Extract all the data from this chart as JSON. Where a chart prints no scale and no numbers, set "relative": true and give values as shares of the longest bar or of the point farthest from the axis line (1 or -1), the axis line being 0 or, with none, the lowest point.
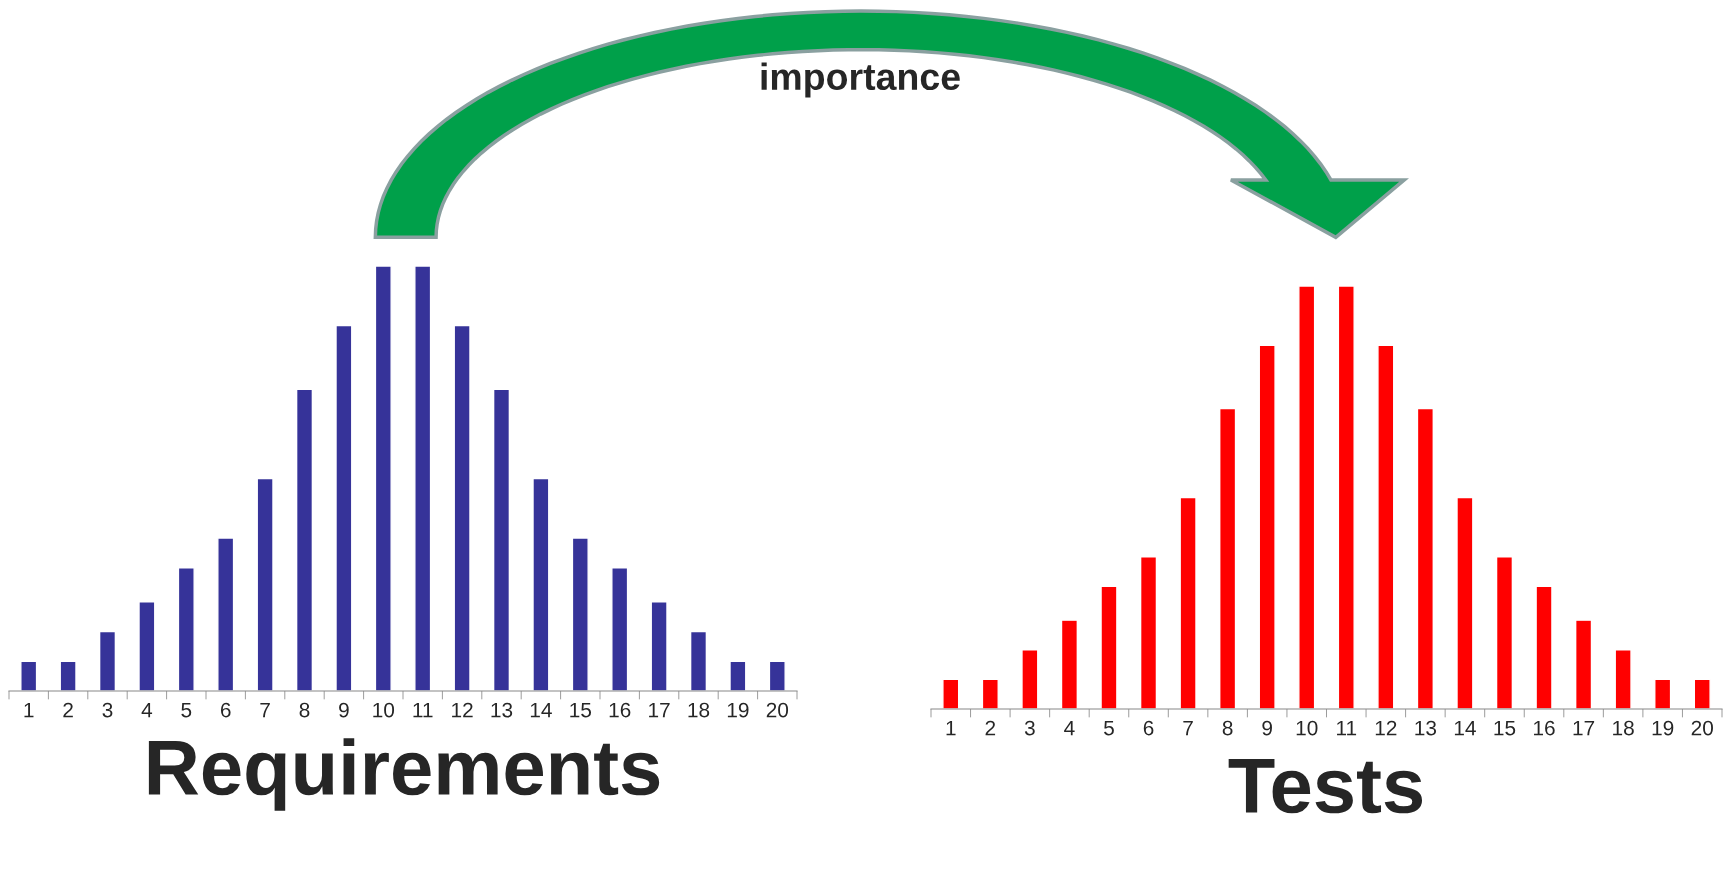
{
  "chart_data": [
    {
      "type": "bar",
      "relative": true,
      "xlabel": "Requirements",
      "annotations": [
        "importance"
      ],
      "categories": [
        "1",
        "2",
        "3",
        "4",
        "5",
        "6",
        "7",
        "8",
        "9",
        "10",
        "11",
        "12",
        "13",
        "14",
        "15",
        "16",
        "17",
        "18",
        "19",
        "20"
      ],
      "color": "#363399",
      "values": [
        0.07,
        0.07,
        0.14,
        0.21,
        0.29,
        0.36,
        0.5,
        0.71,
        0.86,
        1,
        1,
        0.86,
        0.71,
        0.5,
        0.36,
        0.29,
        0.21,
        0.14,
        0.07,
        0.07
      ]
    },
    {
      "type": "bar",
      "relative": true,
      "xlabel": "Tests",
      "categories": [
        "1",
        "2",
        "3",
        "4",
        "5",
        "6",
        "7",
        "8",
        "9",
        "10",
        "11",
        "12",
        "13",
        "14",
        "15",
        "16",
        "17",
        "18",
        "19",
        "20"
      ],
      "color": "#ff0000",
      "values": [
        0.07,
        0.07,
        0.14,
        0.21,
        0.29,
        0.36,
        0.5,
        0.71,
        0.86,
        1,
        1,
        0.86,
        0.71,
        0.5,
        0.36,
        0.29,
        0.21,
        0.14,
        0.07,
        0.07
      ]
    }
  ]
}
